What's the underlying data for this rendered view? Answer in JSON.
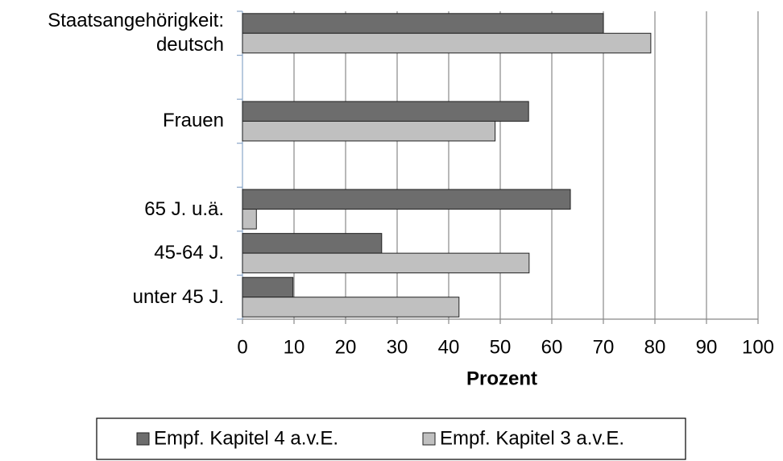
{
  "chart_data": {
    "type": "barh",
    "categories": [
      "Staatsangehörigkeit:\ndeutsch",
      null,
      "Frauen",
      null,
      "65 J. u.ä.",
      "45-64 J.",
      "unter 45 J."
    ],
    "series": [
      {
        "name": "Empf. Kapitel 4 a.v.E.",
        "color": "#6d6d6d",
        "values": [
          70,
          null,
          55.5,
          null,
          63.6,
          27,
          9.8
        ]
      },
      {
        "name": "Empf. Kapitel 3 a.v.E.",
        "color": "#c0c0c0",
        "values": [
          79.2,
          null,
          49,
          null,
          2.7,
          55.6,
          42
        ]
      }
    ],
    "xlabel": "Prozent",
    "xlim": [
      0,
      100
    ],
    "xticks": [
      0,
      10,
      20,
      30,
      40,
      50,
      60,
      70,
      80,
      90,
      100
    ],
    "grid": true,
    "legend": "bottom"
  }
}
